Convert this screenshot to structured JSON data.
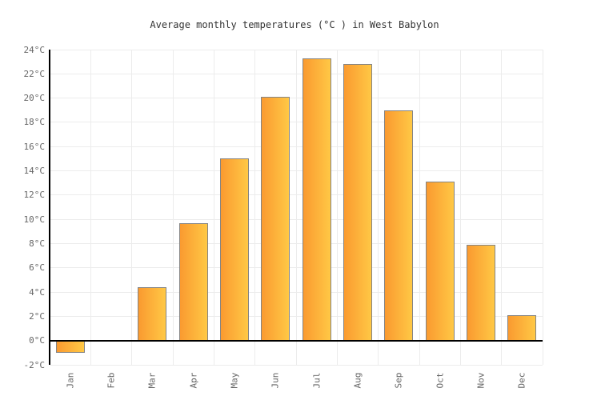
{
  "chart_data": {
    "type": "bar",
    "title": "Average monthly temperatures (°C ) in West Babylon",
    "categories": [
      "Jan",
      "Feb",
      "Mar",
      "Apr",
      "May",
      "Jun",
      "Jul",
      "Aug",
      "Sep",
      "Oct",
      "Nov",
      "Dec"
    ],
    "values": [
      -1.0,
      0,
      4.4,
      9.7,
      15.0,
      20.1,
      23.3,
      22.8,
      19.0,
      13.1,
      7.9,
      2.1
    ],
    "xlabel": "",
    "ylabel": "",
    "ylim": [
      -2,
      24
    ],
    "ytick_step": 2,
    "ytick_suffix": "°C",
    "grid": true,
    "legend_position": "none",
    "colors": {
      "bar_gradient_left": "#FA9A30",
      "bar_gradient_right": "#FFC845",
      "bar_border": "#848484",
      "grid": "#ECECEC",
      "axis": "#000000",
      "tick_label": "#666666",
      "title": "#333333",
      "background": "#FFFFFF"
    }
  }
}
